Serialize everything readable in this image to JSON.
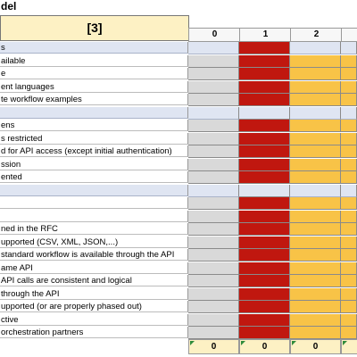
{
  "sheet": {
    "title": "del",
    "header_label": "[3]",
    "level_columns": [
      "0",
      "1",
      "2"
    ],
    "rows": [
      {
        "label": "s",
        "type": "section"
      },
      {
        "label": "ailable",
        "type": "item"
      },
      {
        "label": "e",
        "type": "item"
      },
      {
        "label": "ent languages",
        "type": "item"
      },
      {
        "label": "te workflow examples",
        "type": "item"
      },
      {
        "label": "",
        "type": "section"
      },
      {
        "label": "ens",
        "type": "item"
      },
      {
        "label": "s restricted",
        "type": "item"
      },
      {
        "label": "d for API access (except initial authentication)",
        "type": "item"
      },
      {
        "label": "ssion",
        "type": "item"
      },
      {
        "label": "ented",
        "type": "item"
      },
      {
        "label": "",
        "type": "section"
      },
      {
        "label": "",
        "type": "item"
      },
      {
        "label": "",
        "type": "item"
      },
      {
        "label": "ned in the RFC",
        "type": "item"
      },
      {
        "label": "upported (CSV, XML, JSON,...)",
        "type": "item"
      },
      {
        "label": "standard workflow is available through the API",
        "type": "item"
      },
      {
        "label": "ame API",
        "type": "item"
      },
      {
        "label": " API calls are consistent and logical",
        "type": "item"
      },
      {
        "label": "through the API",
        "type": "item"
      },
      {
        "label": "upported (or are properly phased out)",
        "type": "item"
      },
      {
        "label": "ctive",
        "type": "item"
      },
      {
        "label": "orchestration partners",
        "type": "item"
      }
    ],
    "totals": [
      "0",
      "0",
      "0"
    ]
  },
  "colors": {
    "level_0": "#d9d9d9",
    "level_1": "#c0170f",
    "level_2": "#f8c347",
    "section": "#dfe5f2",
    "header": "#fdf1c4"
  }
}
